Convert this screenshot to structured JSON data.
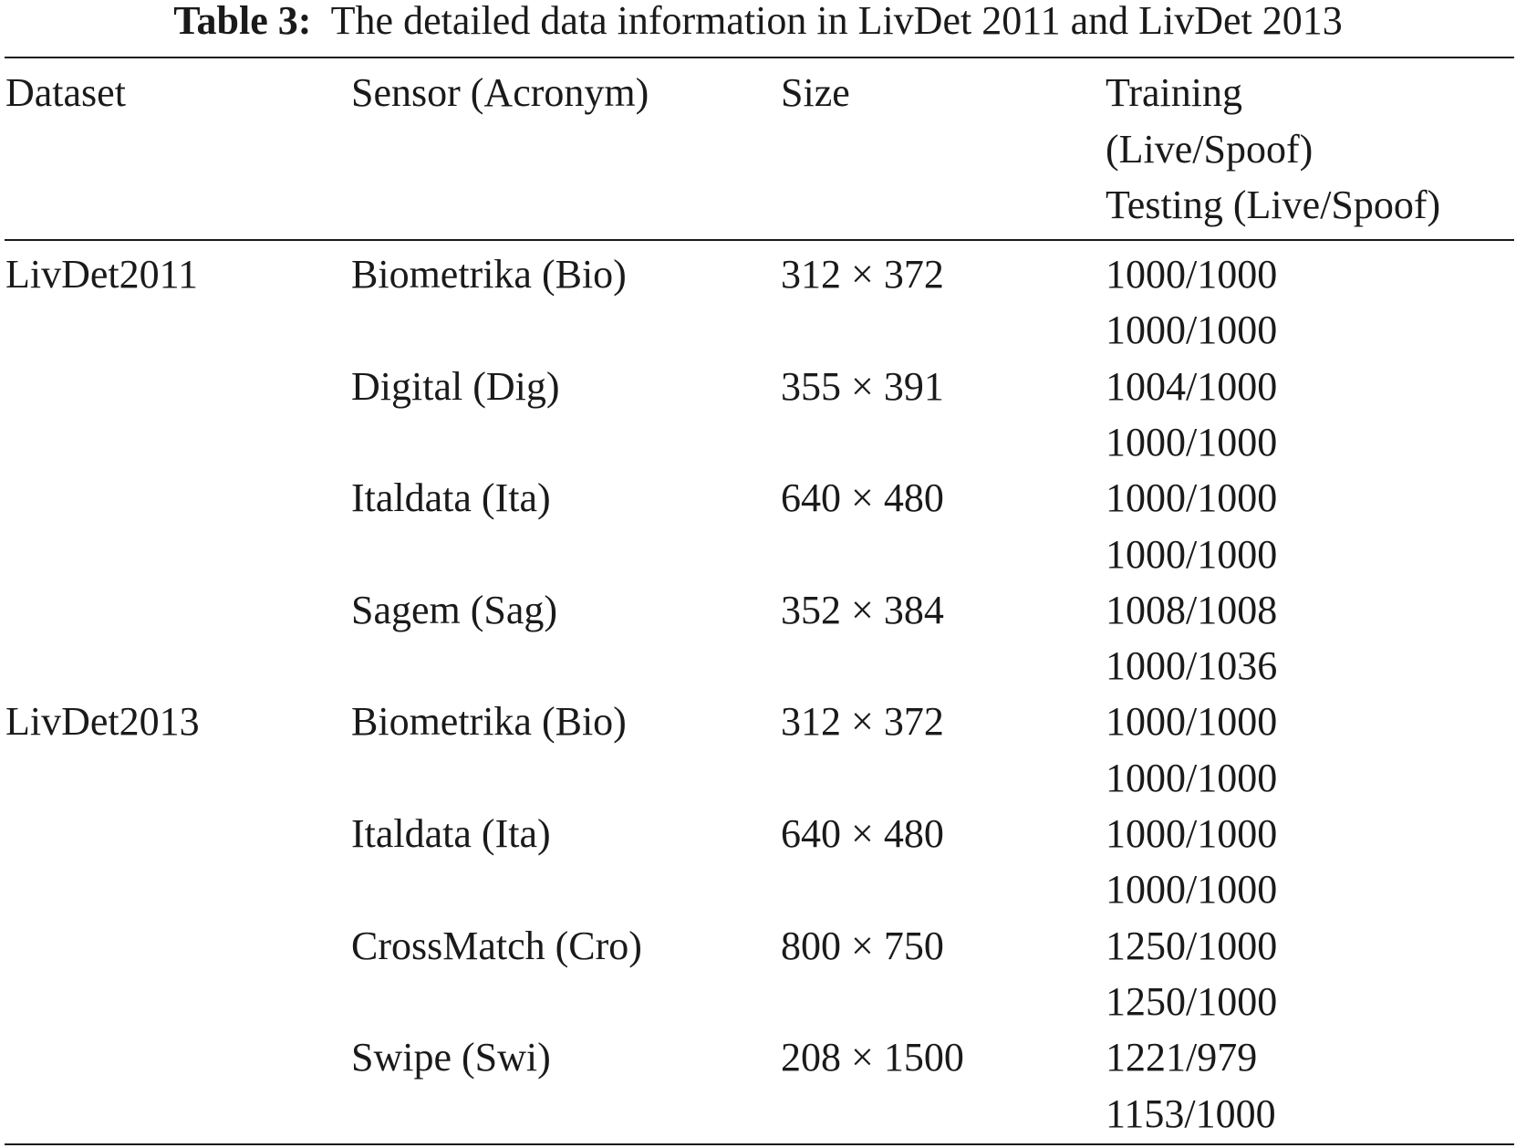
{
  "caption": {
    "label": "Table 3:",
    "text": "The detailed data information in LivDet 2011 and LivDet 2013"
  },
  "header": {
    "dataset": "Dataset",
    "sensor": "Sensor (Acronym)",
    "size": "Size",
    "split_line1": "Training",
    "split_line2": "(Live/Spoof)",
    "split_line3": "Testing (Live/Spoof)"
  },
  "rows": [
    {
      "dataset": "LivDet2011",
      "sensor": "Biometrika (Bio)",
      "size": "312 × 372",
      "training": "1000/1000",
      "testing": "1000/1000"
    },
    {
      "dataset": "",
      "sensor": "Digital (Dig)",
      "size": "355 × 391",
      "training": "1004/1000",
      "testing": "1000/1000"
    },
    {
      "dataset": "",
      "sensor": "Italdata (Ita)",
      "size": "640 × 480",
      "training": "1000/1000",
      "testing": "1000/1000"
    },
    {
      "dataset": "",
      "sensor": "Sagem (Sag)",
      "size": "352 × 384",
      "training": "1008/1008",
      "testing": "1000/1036"
    },
    {
      "dataset": "LivDet2013",
      "sensor": "Biometrika (Bio)",
      "size": "312 × 372",
      "training": "1000/1000",
      "testing": "1000/1000"
    },
    {
      "dataset": "",
      "sensor": "Italdata (Ita)",
      "size": "640 × 480",
      "training": "1000/1000",
      "testing": "1000/1000"
    },
    {
      "dataset": "",
      "sensor": "CrossMatch (Cro)",
      "size": "800 × 750",
      "training": "1250/1000",
      "testing": "1250/1000"
    },
    {
      "dataset": "",
      "sensor": "Swipe (Swi)",
      "size": "208 × 1500",
      "training": "1221/979",
      "testing": "1153/1000"
    }
  ]
}
